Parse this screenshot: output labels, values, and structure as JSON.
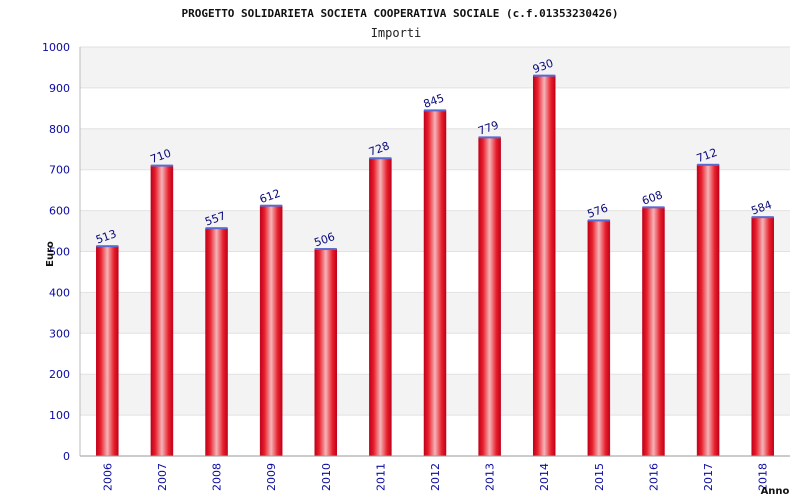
{
  "chart_data": {
    "type": "bar",
    "title": "PROGETTO SOLIDARIETA SOCIETA COOPERATIVA SOCIALE (c.f.01353230426)",
    "subtitle": "Importi",
    "xlabel": "Anno",
    "ylabel": "Euro",
    "categories": [
      "2006",
      "2007",
      "2008",
      "2009",
      "2010",
      "2011",
      "2012",
      "2013",
      "2014",
      "2015",
      "2016",
      "2017",
      "2018"
    ],
    "values": [
      513,
      710,
      557,
      612,
      506,
      728,
      845,
      779,
      930,
      576,
      608,
      712,
      584
    ],
    "ylim": [
      0,
      1000
    ],
    "yticks": [
      0,
      100,
      200,
      300,
      400,
      500,
      600,
      700,
      800,
      900,
      1000
    ],
    "grid": true,
    "colors": {
      "bar_edge": "#c0001a",
      "bar_mid": "#f4b4b8",
      "bar_main": "#e8202c",
      "bar_top": "#5a6ad0",
      "band": "#f3f3f3",
      "label": "#0a0aa0"
    }
  }
}
